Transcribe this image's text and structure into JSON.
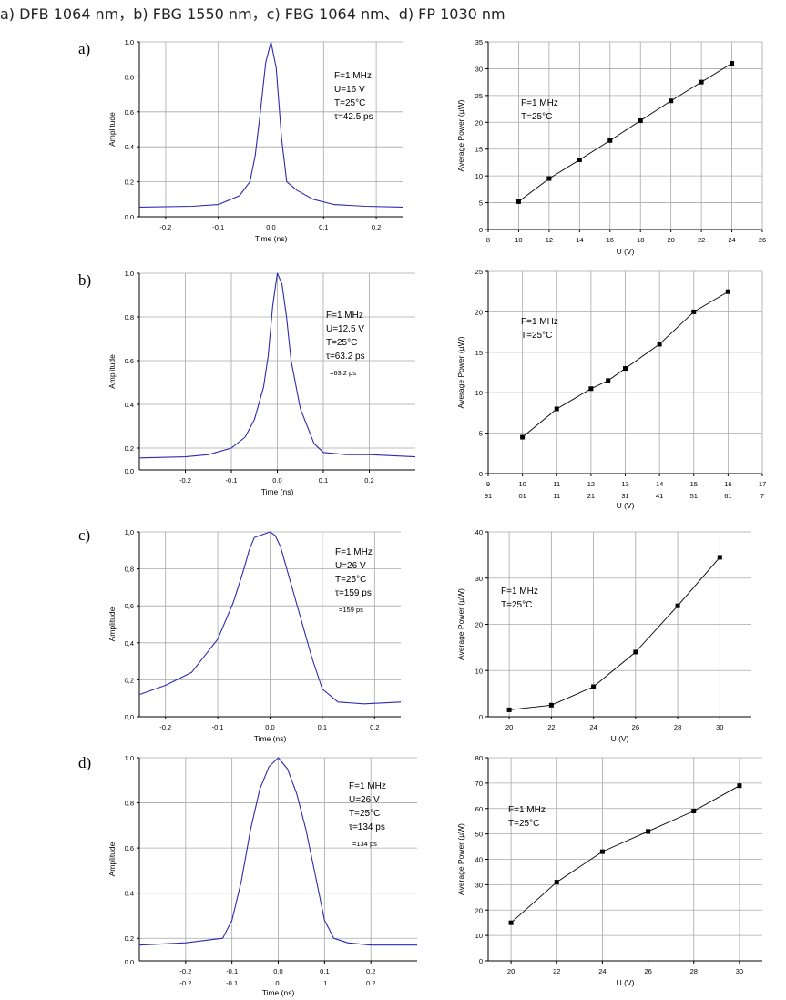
{
  "caption": "a)   DFB 1064 nm，b) FBG 1550 nm，c) FBG 1064 nm、d) FP 1030 nm",
  "row_labels": [
    "a)",
    "b)",
    "c)",
    "d)"
  ],
  "colors": {
    "pulse_line": "#2b2bb0",
    "power_line": "#000000",
    "grid": "#a8a8a8"
  },
  "chart_data": [
    {
      "id": "pulse-a",
      "type": "line",
      "xlabel": "Time (ns)",
      "ylabel": "Amplitude",
      "xlim": [
        -0.25,
        0.25
      ],
      "ylim": [
        0,
        1.0
      ],
      "xticks": [
        -0.2,
        -0.1,
        0.0,
        0.1,
        0.2
      ],
      "xtick_labels": [
        "-0.2",
        "-0.1",
        "0.0",
        "0.1",
        "0.2"
      ],
      "yticks": [
        0,
        0.2,
        0.4,
        0.6,
        0.8,
        1.0
      ],
      "ytick_labels": [
        "0.0",
        "0.2",
        "0.4",
        "0.6",
        "0.8",
        "1.0"
      ],
      "annotations": [
        "F=1 MHz",
        "U=16 V",
        "T=25°C",
        "τ=42.5 ps"
      ],
      "x": [
        -0.25,
        -0.15,
        -0.1,
        -0.06,
        -0.04,
        -0.03,
        -0.02,
        -0.01,
        0.0,
        0.01,
        0.02,
        0.03,
        0.05,
        0.08,
        0.12,
        0.18,
        0.25
      ],
      "y": [
        0.055,
        0.06,
        0.07,
        0.12,
        0.2,
        0.35,
        0.6,
        0.88,
        1.0,
        0.85,
        0.45,
        0.2,
        0.15,
        0.1,
        0.07,
        0.06,
        0.055
      ]
    },
    {
      "id": "power-a",
      "type": "line",
      "xlabel": "U (V)",
      "ylabel": "Average Power (µW)",
      "xlim": [
        8,
        26
      ],
      "ylim": [
        0,
        35
      ],
      "xticks": [
        8,
        10,
        12,
        14,
        16,
        18,
        20,
        22,
        24,
        26
      ],
      "xtick_labels": [
        "8",
        "10",
        "12",
        "14",
        "16",
        "18",
        "20",
        "22",
        "24",
        "26"
      ],
      "yticks": [
        0,
        5,
        10,
        15,
        20,
        25,
        30,
        35
      ],
      "ytick_labels": [
        "0",
        "5",
        "10",
        "15",
        "20",
        "25",
        "30",
        "35"
      ],
      "annotations": [
        "F=1 MHz",
        "T=25°C"
      ],
      "x": [
        10,
        12,
        14,
        16,
        18,
        20,
        22,
        24
      ],
      "y": [
        5.2,
        9.5,
        13.0,
        16.6,
        20.3,
        24.0,
        27.5,
        31.0
      ]
    },
    {
      "id": "pulse-b",
      "type": "line",
      "xlabel": "Time (ns)",
      "ylabel": "Amplitude",
      "xlim": [
        -0.3,
        0.3
      ],
      "ylim": [
        0.1,
        1.0
      ],
      "xticks": [
        -0.2,
        -0.1,
        0.0,
        0.1,
        0.2
      ],
      "xtick_labels": [
        "-0.2",
        "-0.1",
        "0.0",
        "0.1",
        "0.2"
      ],
      "yticks": [
        0.2,
        0.4,
        0.6,
        0.8,
        1.0
      ],
      "ytick_labels": [
        "0.2",
        "0.4",
        "0.6",
        "0.8",
        "1.0"
      ],
      "axis_origin_label": "0.0",
      "annotations": [
        "F=1  MHz",
        "U=12.5 V",
        "T=25°C",
        "τ=63.2 ps",
        "=63.2 ps"
      ],
      "x": [
        -0.3,
        -0.2,
        -0.15,
        -0.1,
        -0.07,
        -0.05,
        -0.03,
        -0.02,
        -0.01,
        0.0,
        0.01,
        0.02,
        0.03,
        0.05,
        0.08,
        0.1,
        0.15,
        0.2,
        0.3
      ],
      "y": [
        0.155,
        0.16,
        0.17,
        0.2,
        0.25,
        0.33,
        0.48,
        0.62,
        0.85,
        1.0,
        0.95,
        0.8,
        0.6,
        0.38,
        0.22,
        0.18,
        0.17,
        0.17,
        0.16
      ]
    },
    {
      "id": "power-b",
      "type": "line",
      "xlabel": "U (V)",
      "ylabel": "Average Power (µW)",
      "xlim": [
        9,
        17
      ],
      "ylim": [
        0,
        25
      ],
      "xticks": [
        9,
        10,
        11,
        12,
        13,
        14,
        15,
        16,
        17
      ],
      "xtick_labels": [
        "9",
        "10",
        "11",
        "12",
        "13",
        "14",
        "15",
        "16",
        "17"
      ],
      "xtick_labels_2": [
        "91",
        "01",
        "11",
        "21",
        "31",
        "41",
        "51",
        "61",
        "7"
      ],
      "yticks": [
        0,
        5,
        10,
        15,
        20,
        25
      ],
      "ytick_labels": [
        "0",
        "5",
        "10",
        "15",
        "20",
        "25"
      ],
      "annotations": [
        "F=1 MHz",
        "T=25°C"
      ],
      "x": [
        10,
        11,
        12,
        12.5,
        13,
        14,
        15,
        16
      ],
      "y": [
        4.5,
        8.0,
        10.5,
        11.5,
        13.0,
        16.0,
        20.0,
        22.5
      ]
    },
    {
      "id": "pulse-c",
      "type": "line",
      "xlabel": "Time (ns)",
      "ylabel": "Amplitude",
      "xlim": [
        -0.25,
        0.25
      ],
      "ylim": [
        0,
        1.0
      ],
      "xticks": [
        -0.2,
        -0.1,
        0.0,
        0.1,
        0.2
      ],
      "xtick_labels": [
        "-0.2",
        "-0.1",
        "0.0",
        "0.1",
        "0.2"
      ],
      "yticks": [
        0,
        0.2,
        0.4,
        0.6,
        0.8,
        1.0
      ],
      "ytick_labels": [
        "0,0",
        "0,2",
        "0,4",
        "0,6",
        "0,8",
        "1,0"
      ],
      "annotations": [
        "F=1 MHz",
        "U=26 V",
        "T=25°C",
        "τ=159 ps",
        "=159 ps"
      ],
      "x": [
        -0.25,
        -0.2,
        -0.15,
        -0.1,
        -0.07,
        -0.05,
        -0.04,
        -0.03,
        -0.02,
        -0.01,
        0.0,
        0.01,
        0.02,
        0.03,
        0.05,
        0.08,
        0.1,
        0.13,
        0.18,
        0.25
      ],
      "y": [
        0.12,
        0.17,
        0.24,
        0.42,
        0.62,
        0.8,
        0.9,
        0.97,
        0.98,
        0.99,
        1.0,
        0.98,
        0.92,
        0.82,
        0.62,
        0.32,
        0.15,
        0.08,
        0.07,
        0.08
      ]
    },
    {
      "id": "power-c",
      "type": "line",
      "xlabel": "U (V)",
      "ylabel": "Average Power (µW)",
      "xlim": [
        19,
        31.5
      ],
      "ylim": [
        0,
        40
      ],
      "xticks": [
        20,
        22,
        24,
        26,
        28,
        30
      ],
      "xtick_labels": [
        "20",
        "22",
        "24",
        "26",
        "28",
        "30"
      ],
      "yticks": [
        0,
        10,
        20,
        30,
        40
      ],
      "ytick_labels": [
        "0",
        "10",
        "20",
        "30",
        "40"
      ],
      "annotations": [
        "F=1 MHz",
        "T=25°C"
      ],
      "x": [
        20,
        22,
        24,
        26,
        28,
        30
      ],
      "y": [
        1.5,
        2.5,
        6.5,
        14.0,
        24.0,
        34.5
      ]
    },
    {
      "id": "pulse-d",
      "type": "line",
      "xlabel": "Time (ns)",
      "ylabel": "Amplitude",
      "xlim": [
        -0.3,
        0.3
      ],
      "ylim": [
        0.1,
        1.0
      ],
      "xticks": [
        -0.2,
        -0.1,
        0.0,
        0.1,
        0.2
      ],
      "xtick_labels": [
        "-0.2",
        "-0.1",
        "0.0",
        "0.1",
        "0.2"
      ],
      "xtick_labels_2": [
        "-0.2",
        "-0.1",
        "0.",
        ".1",
        "0.2"
      ],
      "yticks": [
        0.2,
        0.4,
        0.6,
        0.8,
        1.0
      ],
      "ytick_labels": [
        "0.2",
        "0.4",
        "0.6",
        "0.8",
        "1.0"
      ],
      "axis_origin_label": "0.0",
      "annotations": [
        "F=1 MHz",
        "U=26 V",
        "T=25°C",
        "τ=134 ps",
        "=134 ps"
      ],
      "x": [
        -0.3,
        -0.2,
        -0.12,
        -0.1,
        -0.08,
        -0.06,
        -0.04,
        -0.02,
        0.0,
        0.02,
        0.04,
        0.06,
        0.08,
        0.1,
        0.12,
        0.15,
        0.2,
        0.3
      ],
      "y": [
        0.17,
        0.18,
        0.2,
        0.28,
        0.45,
        0.68,
        0.86,
        0.96,
        1.0,
        0.95,
        0.84,
        0.68,
        0.48,
        0.28,
        0.2,
        0.18,
        0.17,
        0.17
      ]
    },
    {
      "id": "power-d",
      "type": "line",
      "xlabel": "U (V)",
      "ylabel": "Average Power (µW)",
      "xlim": [
        19,
        31
      ],
      "ylim": [
        0,
        80
      ],
      "xticks": [
        20,
        22,
        24,
        26,
        28,
        30
      ],
      "xtick_labels": [
        "20",
        "22",
        "24",
        "26",
        "28",
        "30"
      ],
      "yticks": [
        0,
        10,
        20,
        30,
        40,
        50,
        60,
        70,
        80
      ],
      "ytick_labels": [
        "0",
        "10",
        "20",
        "30",
        "40",
        "50",
        "60",
        "70",
        "80"
      ],
      "annotations": [
        "F=1 MHz",
        "T=25°C"
      ],
      "x": [
        20,
        22,
        24,
        26,
        28,
        30
      ],
      "y": [
        15,
        31,
        43,
        51,
        59,
        69
      ]
    }
  ]
}
